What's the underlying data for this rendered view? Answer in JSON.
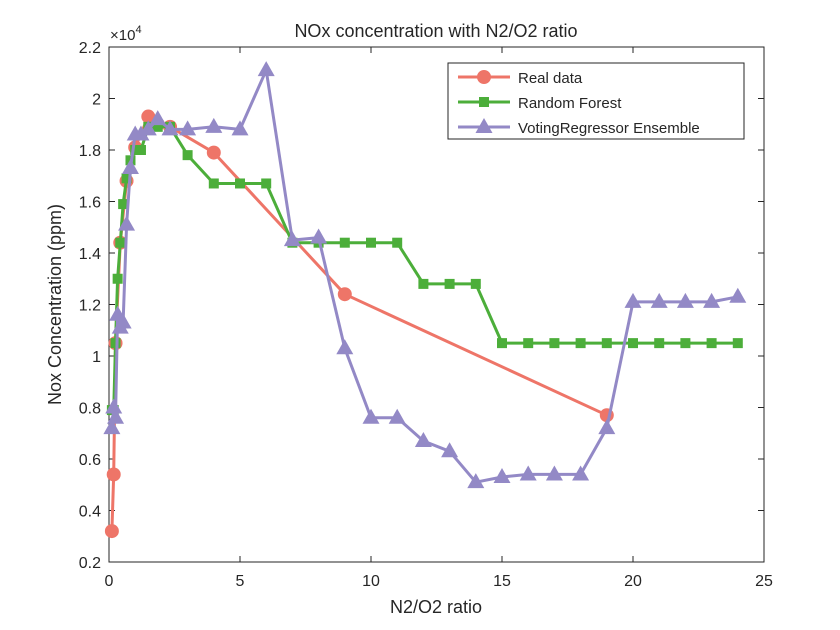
{
  "chart_data": {
    "type": "line",
    "title": "NOx concentration with N2/O2 ratio",
    "xlabel": "N2/O2 ratio",
    "ylabel": "Nox Concentration (ppm)",
    "exponent_label": "×10",
    "exponent_power": "4",
    "xlim": [
      0,
      25
    ],
    "ylim": [
      0.2,
      2.2
    ],
    "xticks": [
      "0",
      "5",
      "10",
      "15",
      "20",
      "25"
    ],
    "yticks": [
      "0.2",
      "0.4",
      "0.6",
      "0.8",
      "1",
      "1.2",
      "1.4",
      "1.6",
      "1.8",
      "2",
      "2.2"
    ],
    "grid": false,
    "legend_position": "top-right",
    "series": [
      {
        "name": "Real data",
        "color": "#ee7568",
        "marker": "circle",
        "x": [
          0.11,
          0.18,
          0.25,
          0.43,
          0.67,
          1.0,
          1.5,
          1.86,
          2.33,
          4.0,
          9.0,
          19.0
        ],
        "y": [
          0.32,
          0.54,
          1.05,
          1.44,
          1.68,
          1.81,
          1.93,
          1.9,
          1.89,
          1.79,
          1.24,
          0.77
        ]
      },
      {
        "name": "Random Forest",
        "color": "#4cae3a",
        "marker": "square",
        "x": [
          0.11,
          0.18,
          0.25,
          0.33,
          0.43,
          0.54,
          0.67,
          0.82,
          1.0,
          1.22,
          1.5,
          1.86,
          2.33,
          3,
          4,
          5,
          6,
          7,
          8,
          9,
          10,
          11,
          12,
          13,
          14,
          15,
          16,
          17,
          18,
          19,
          20,
          21,
          22,
          23,
          24
        ],
        "y": [
          0.79,
          0.79,
          1.05,
          1.3,
          1.44,
          1.59,
          1.69,
          1.76,
          1.8,
          1.8,
          1.89,
          1.89,
          1.89,
          1.78,
          1.67,
          1.67,
          1.67,
          1.44,
          1.44,
          1.44,
          1.44,
          1.44,
          1.28,
          1.28,
          1.28,
          1.05,
          1.05,
          1.05,
          1.05,
          1.05,
          1.05,
          1.05,
          1.05,
          1.05,
          1.05
        ]
      },
      {
        "name": "VotingRegressor Ensemble",
        "color": "#9389c6",
        "marker": "triangle",
        "x": [
          0.11,
          0.18,
          0.25,
          0.33,
          0.43,
          0.54,
          0.67,
          0.82,
          1.0,
          1.22,
          1.5,
          1.86,
          2.33,
          3,
          4,
          5,
          6,
          7,
          8,
          9,
          10,
          11,
          12,
          13,
          14,
          15,
          16,
          17,
          18,
          19,
          20,
          21,
          22,
          23,
          24
        ],
        "y": [
          0.72,
          0.8,
          0.76,
          1.16,
          1.11,
          1.13,
          1.51,
          1.73,
          1.86,
          1.86,
          1.88,
          1.92,
          1.88,
          1.88,
          1.89,
          1.88,
          2.11,
          1.45,
          1.46,
          1.03,
          0.76,
          0.76,
          0.67,
          0.63,
          0.51,
          0.53,
          0.54,
          0.54,
          0.54,
          0.72,
          1.21,
          1.21,
          1.21,
          1.21,
          1.23
        ]
      }
    ]
  }
}
